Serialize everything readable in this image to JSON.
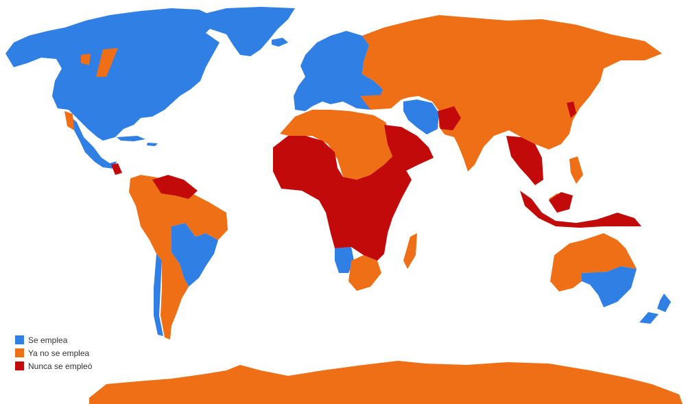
{
  "colors": {
    "se_emplea": "#2f7fe4",
    "ya_no": "#ef6f17",
    "nunca": "#c30a0a",
    "background": "#ffffff"
  },
  "legend": {
    "items": [
      {
        "label": "Se emplea"
      },
      {
        "label": "Ya no se emplea"
      },
      {
        "label": "Nunca se empleó"
      }
    ]
  }
}
